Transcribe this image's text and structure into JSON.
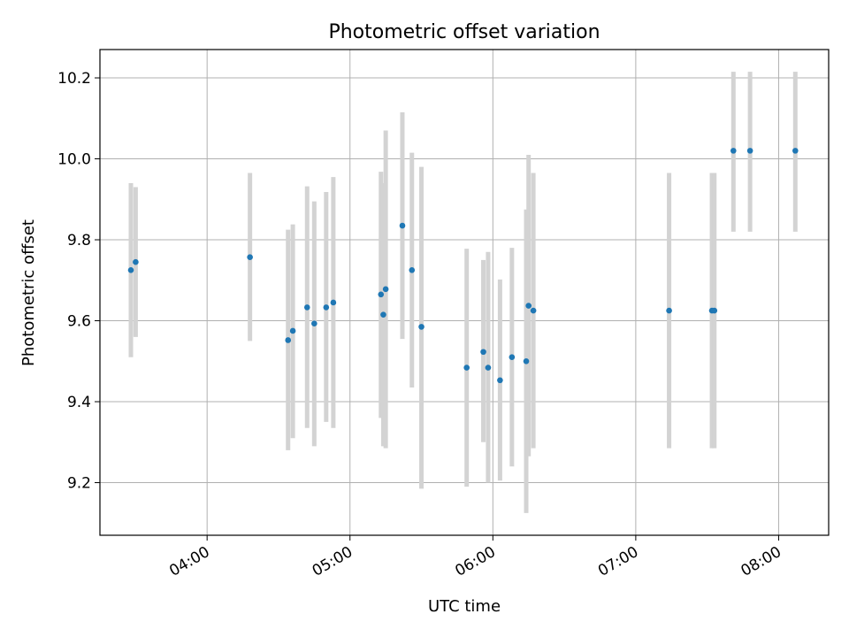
{
  "chart_data": {
    "type": "scatter",
    "title": "Photometric offset variation",
    "xlabel": "UTC time",
    "ylabel": "Photometric offset",
    "xlim": [
      "03:15",
      "08:21"
    ],
    "ylim": [
      9.07,
      10.27
    ],
    "x_ticks": [
      "04:00",
      "05:00",
      "06:00",
      "07:00",
      "08:00"
    ],
    "y_ticks": [
      "9.2",
      "9.4",
      "9.6",
      "9.8",
      "10.0",
      "10.2"
    ],
    "grid": true,
    "colors": {
      "point": "#1f77b4",
      "errorbar": "#d3d3d3",
      "grid": "#b0b0b0"
    },
    "points": [
      {
        "x": "03:28",
        "y": 9.725,
        "low": 9.51,
        "high": 9.94
      },
      {
        "x": "03:30",
        "y": 9.745,
        "low": 9.56,
        "high": 9.93
      },
      {
        "x": "04:18",
        "y": 9.757,
        "low": 9.55,
        "high": 9.965
      },
      {
        "x": "04:34",
        "y": 9.552,
        "low": 9.28,
        "high": 9.825
      },
      {
        "x": "04:36",
        "y": 9.575,
        "low": 9.31,
        "high": 9.838
      },
      {
        "x": "04:42",
        "y": 9.633,
        "low": 9.335,
        "high": 9.932
      },
      {
        "x": "04:45",
        "y": 9.593,
        "low": 9.29,
        "high": 9.895
      },
      {
        "x": "04:50",
        "y": 9.633,
        "low": 9.35,
        "high": 9.918
      },
      {
        "x": "04:53",
        "y": 9.645,
        "low": 9.335,
        "high": 9.955
      },
      {
        "x": "05:13",
        "y": 9.665,
        "low": 9.36,
        "high": 9.968
      },
      {
        "x": "05:14",
        "y": 9.615,
        "low": 9.29,
        "high": 9.94
      },
      {
        "x": "05:15",
        "y": 9.678,
        "low": 9.285,
        "high": 10.07
      },
      {
        "x": "05:22",
        "y": 9.835,
        "low": 9.555,
        "high": 10.115
      },
      {
        "x": "05:26",
        "y": 9.725,
        "low": 9.435,
        "high": 10.015
      },
      {
        "x": "05:30",
        "y": 9.585,
        "low": 9.185,
        "high": 9.98
      },
      {
        "x": "05:49",
        "y": 9.484,
        "low": 9.19,
        "high": 9.778
      },
      {
        "x": "05:56",
        "y": 9.523,
        "low": 9.3,
        "high": 9.75
      },
      {
        "x": "05:58",
        "y": 9.484,
        "low": 9.2,
        "high": 9.77
      },
      {
        "x": "06:03",
        "y": 9.453,
        "low": 9.205,
        "high": 9.702
      },
      {
        "x": "06:08",
        "y": 9.51,
        "low": 9.24,
        "high": 9.78
      },
      {
        "x": "06:14",
        "y": 9.5,
        "low": 9.125,
        "high": 9.875
      },
      {
        "x": "06:15",
        "y": 9.637,
        "low": 9.265,
        "high": 10.01
      },
      {
        "x": "06:17",
        "y": 9.625,
        "low": 9.285,
        "high": 9.965
      },
      {
        "x": "07:14",
        "y": 9.625,
        "low": 9.285,
        "high": 9.965
      },
      {
        "x": "07:32",
        "y": 9.625,
        "low": 9.285,
        "high": 9.965
      },
      {
        "x": "07:33",
        "y": 9.625,
        "low": 9.285,
        "high": 9.965
      },
      {
        "x": "07:41",
        "y": 10.02,
        "low": 9.82,
        "high": 10.215
      },
      {
        "x": "07:48",
        "y": 10.02,
        "low": 9.82,
        "high": 10.215
      },
      {
        "x": "08:07",
        "y": 10.02,
        "low": 9.82,
        "high": 10.215
      }
    ]
  }
}
